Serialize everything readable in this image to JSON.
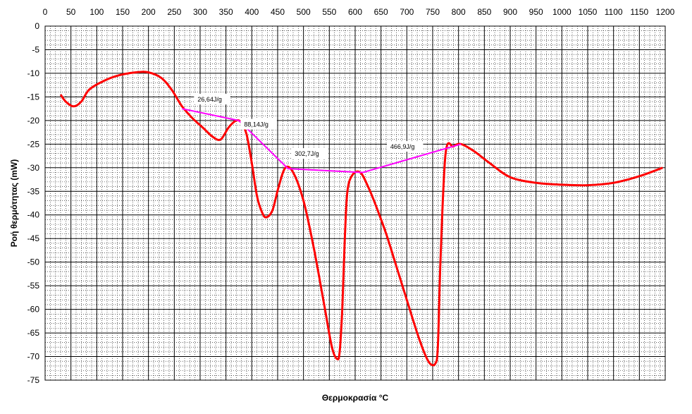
{
  "chart_data": {
    "type": "line",
    "xlabel": "Θερμοκρασία °C",
    "ylabel": "Ροή θερμότητας (mW)",
    "xlim": [
      0,
      1200
    ],
    "ylim": [
      -75,
      0
    ],
    "x_ticks": [
      "0",
      "50",
      "100",
      "150",
      "200",
      "250",
      "300",
      "350",
      "400",
      "450",
      "500",
      "550",
      "600",
      "650",
      "700",
      "750",
      "800",
      "850",
      "900",
      "950",
      "1000",
      "1050",
      "1100",
      "1150",
      "1200"
    ],
    "y_ticks": [
      "0",
      "-5",
      "-10",
      "-15",
      "-20",
      "-25",
      "-30",
      "-35",
      "-40",
      "-45",
      "-50",
      "-55",
      "-60",
      "-65",
      "-70",
      "-75"
    ],
    "x_axis_position": "top",
    "grid": true,
    "colors": {
      "dsc_curve": "#ff0000",
      "baseline": "#ff00ff",
      "grid_major": "#000000",
      "grid_minor": "#000000"
    },
    "series": [
      {
        "role": "dsc_curve",
        "x": [
          30,
          40,
          55,
          70,
          85,
          110,
          140,
          175,
          200,
          225,
          245,
          265,
          285,
          305,
          325,
          340,
          355,
          370,
          380,
          390,
          400,
          410,
          420,
          428,
          440,
          452,
          465,
          480,
          500,
          520,
          540,
          555,
          565,
          570,
          575,
          580,
          585,
          595,
          610,
          625,
          640,
          660,
          680,
          700,
          720,
          735,
          745,
          755,
          760,
          765,
          775,
          790,
          805,
          830,
          860,
          900,
          950,
          1000,
          1050,
          1100,
          1150,
          1195
        ],
        "y": [
          -14.5,
          -16,
          -17,
          -16,
          -13.5,
          -11.8,
          -10.5,
          -9.8,
          -9.8,
          -11,
          -13.5,
          -17,
          -19.5,
          -21.5,
          -23.5,
          -24,
          -21.5,
          -20,
          -20.5,
          -23,
          -29,
          -36,
          -39.5,
          -40.5,
          -39,
          -34,
          -30,
          -31,
          -37,
          -47,
          -59,
          -68,
          -70.5,
          -69,
          -60,
          -45,
          -35,
          -31.5,
          -31,
          -34,
          -38,
          -44,
          -51,
          -58,
          -65,
          -69.5,
          -71.5,
          -71.5,
          -68,
          -50,
          -27,
          -25.5,
          -25,
          -26.5,
          -29,
          -32,
          -33.2,
          -33.6,
          -33.7,
          -33.2,
          -31.8,
          -30
        ]
      },
      {
        "role": "baseline",
        "x": [
          265,
          375,
          470,
          615,
          805
        ],
        "y": [
          -17.5,
          -20,
          -30.2,
          -31,
          -25
        ]
      }
    ],
    "annotations": [
      {
        "text": "26,64J/g",
        "x": 295,
        "y": -16
      },
      {
        "text": "88,14J/g",
        "x": 385,
        "y": -21.3
      },
      {
        "text": "302,7J/g",
        "x": 483,
        "y": -27.5
      },
      {
        "text": "466,9J/g",
        "x": 668,
        "y": -26
      }
    ]
  }
}
